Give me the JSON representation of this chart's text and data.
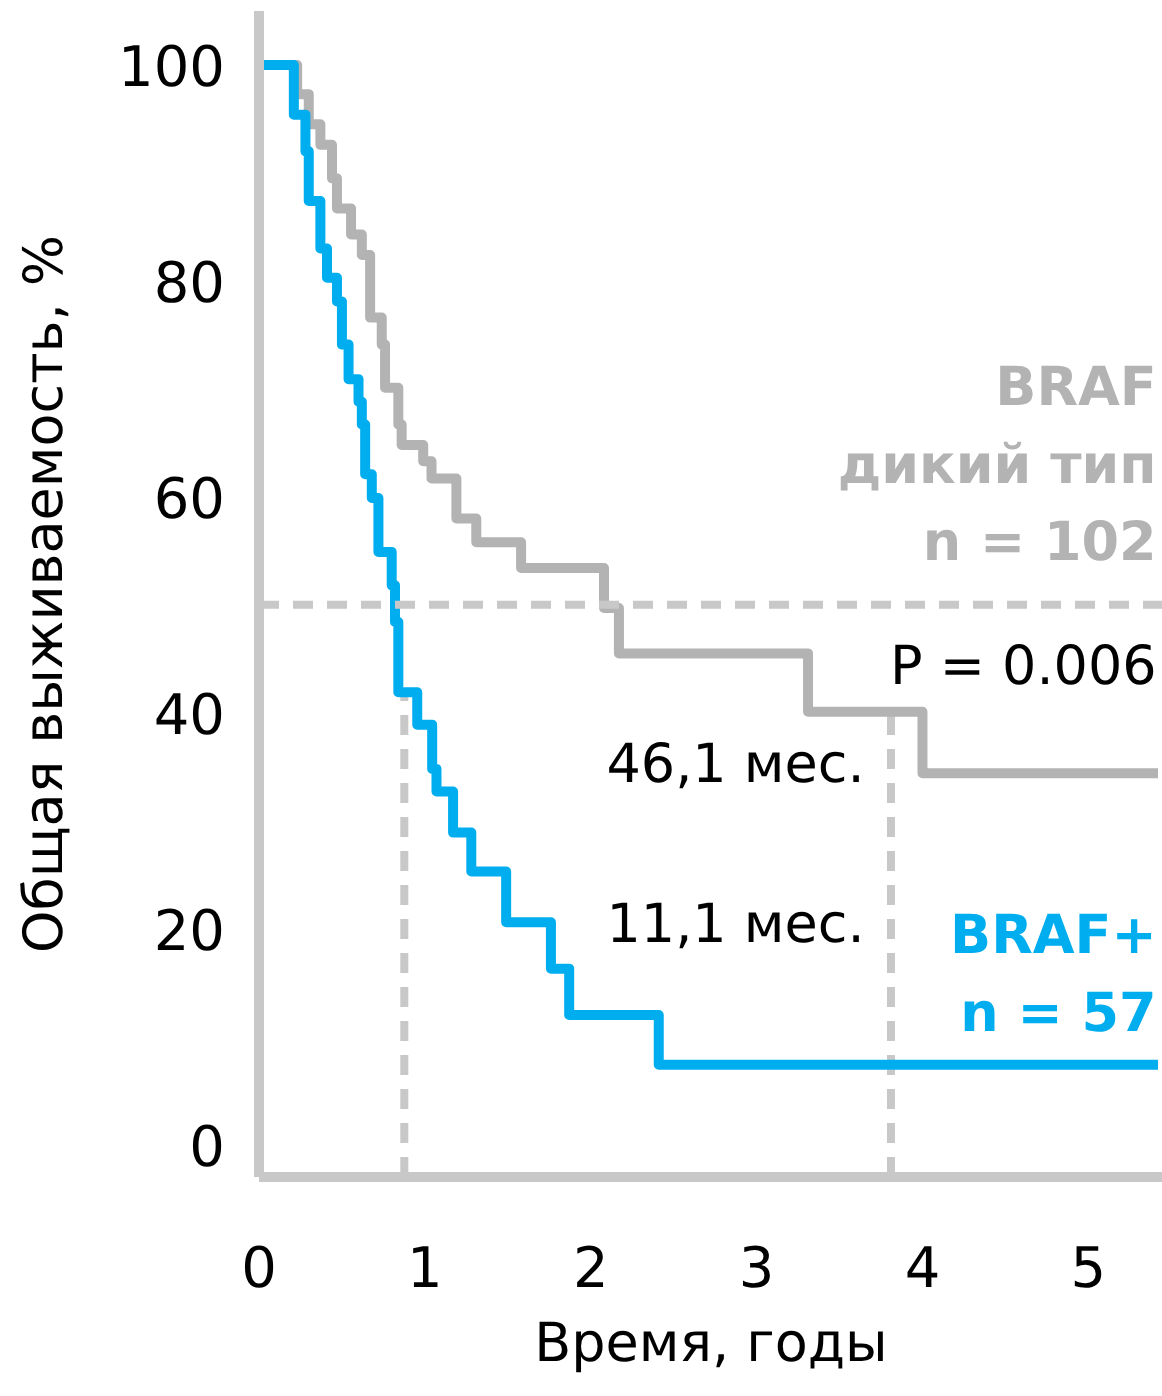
{
  "chart_data": {
    "type": "step",
    "xlabel": "Время, годы",
    "ylabel": "Общая выживаемость, %",
    "xlim": [
      0,
      5.45
    ],
    "ylim": [
      -3,
      105
    ],
    "xticks": [
      0,
      1,
      2,
      3,
      4,
      5
    ],
    "yticks": [
      0,
      20,
      40,
      60,
      80,
      100
    ],
    "grid": false,
    "line_style": "solid",
    "series": [
      {
        "name": "BRAF\nдикий тип\nn = 102",
        "color": "#b3b3b3",
        "x": [
          0,
          0.23,
          0.3,
          0.37,
          0.44,
          0.47,
          0.555,
          0.62,
          0.67,
          0.74,
          0.76,
          0.84,
          0.86,
          0.99,
          1.04,
          1.19,
          1.31,
          1.58,
          2.08,
          2.17,
          3.31,
          4.0,
          5.42
        ],
        "values": [
          100,
          97.3,
          94.5,
          92.6,
          89.5,
          86.7,
          84.3,
          82.4,
          76.6,
          74.1,
          70.1,
          66.7,
          64.8,
          63.3,
          61.7,
          58.0,
          55.8,
          53.4,
          49.7,
          45.5,
          40.1,
          34.4,
          34.4
        ]
      },
      {
        "name": "BRAF+\nn = 57",
        "color": "#00aeef",
        "x": [
          0,
          0.21,
          0.28,
          0.3,
          0.37,
          0.41,
          0.47,
          0.5,
          0.54,
          0.6,
          0.62,
          0.64,
          0.68,
          0.72,
          0.8,
          0.82,
          0.84,
          0.954,
          1.044,
          1.07,
          1.17,
          1.28,
          1.49,
          1.76,
          1.87,
          2.41,
          5.42
        ],
        "values": [
          100,
          95.4,
          92.0,
          87.4,
          83.0,
          80.3,
          78.1,
          74.1,
          70.9,
          68.8,
          66.7,
          62.1,
          59.9,
          54.9,
          51.8,
          48.4,
          41.9,
          38.9,
          34.8,
          32.7,
          28.9,
          25.3,
          20.6,
          16.3,
          12.0,
          7.4,
          7.4
        ]
      }
    ],
    "ref_lines": [
      {
        "axis": "y",
        "value": 50,
        "color": "#c8c8c8",
        "line_style": "dashed"
      },
      {
        "axis": "x",
        "value": 0.876,
        "color": "#c8c8c8",
        "line_style": "dashed"
      },
      {
        "axis": "x",
        "value": 3.81,
        "color": "#c8c8c8",
        "line_style": "dashed"
      }
    ],
    "annotations": [
      "P = 0.006",
      "46,1 мес.",
      "11,1 мес."
    ]
  }
}
